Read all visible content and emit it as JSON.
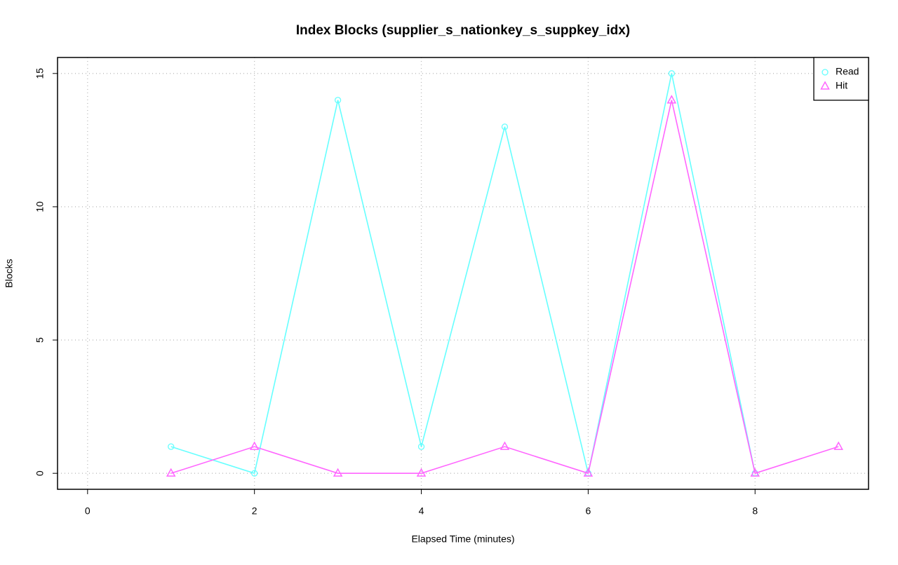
{
  "chart_data": {
    "type": "line",
    "title": "Index Blocks (supplier_s_nationkey_s_suppkey_idx)",
    "x_label": "Elapsed Time (minutes)",
    "y_label": "Blocks",
    "x": [
      1,
      2,
      3,
      4,
      5,
      6,
      7,
      8,
      9
    ],
    "series": [
      {
        "name": "Read",
        "color": "#66ffff",
        "marker": "circle",
        "values": [
          1,
          0,
          14,
          1,
          13,
          0,
          15,
          0,
          null
        ]
      },
      {
        "name": "Hit",
        "color": "#ff66ff",
        "marker": "triangle",
        "values": [
          0,
          1,
          0,
          0,
          1,
          0,
          14,
          0,
          1
        ]
      }
    ],
    "xlim": [
      -0.36,
      9.36
    ],
    "xticks": [
      0,
      2,
      4,
      6,
      8
    ],
    "ylim": [
      -0.6,
      15.6
    ],
    "yticks": [
      0,
      5,
      10,
      15
    ],
    "grid": true,
    "legend": "topright"
  }
}
